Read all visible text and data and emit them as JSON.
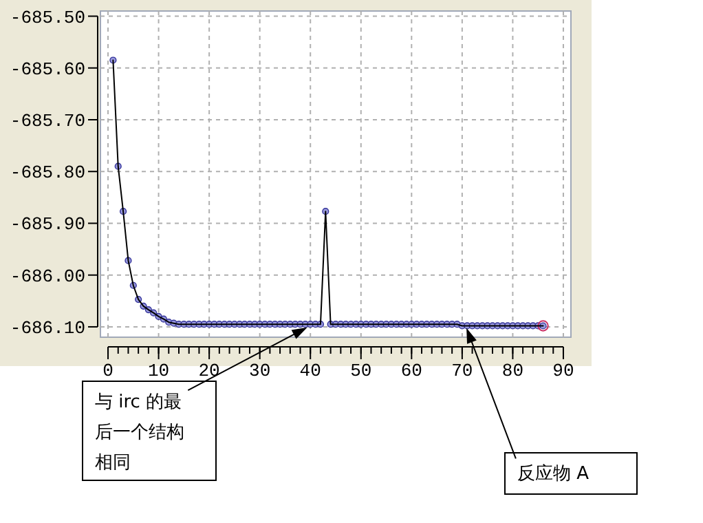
{
  "chart_data": {
    "type": "line",
    "x": [
      1,
      2,
      3,
      4,
      5,
      6,
      7,
      8,
      9,
      10,
      11,
      12,
      13,
      14,
      15,
      16,
      17,
      18,
      19,
      20,
      21,
      22,
      23,
      24,
      25,
      26,
      27,
      28,
      29,
      30,
      31,
      32,
      33,
      34,
      35,
      36,
      37,
      38,
      39,
      40,
      41,
      42,
      43,
      44,
      45,
      46,
      47,
      48,
      49,
      50,
      51,
      52,
      53,
      54,
      55,
      56,
      57,
      58,
      59,
      60,
      61,
      62,
      63,
      64,
      65,
      66,
      67,
      68,
      69,
      70,
      71,
      72,
      73,
      74,
      75,
      76,
      77,
      78,
      79,
      80,
      81,
      82,
      83,
      84,
      85,
      86
    ],
    "series": [
      {
        "color": "#9999dd",
        "values": [
          -685.585,
          -685.79,
          -685.877,
          -685.972,
          -686.02,
          -686.047,
          -686.06,
          -686.067,
          -686.073,
          -686.08,
          -686.085,
          -686.091,
          -686.093,
          -686.095,
          -686.095,
          -686.095,
          -686.095,
          -686.095,
          -686.095,
          -686.095,
          -686.095,
          -686.095,
          -686.095,
          -686.095,
          -686.095,
          -686.095,
          -686.095,
          -686.095,
          -686.095,
          -686.095,
          -686.095,
          -686.095,
          -686.095,
          -686.095,
          -686.095,
          -686.095,
          -686.095,
          -686.095,
          -686.095,
          -686.095,
          -686.095,
          -686.095,
          -685.877,
          -686.095,
          -686.095,
          -686.095,
          -686.095,
          -686.095,
          -686.095,
          -686.095,
          -686.095,
          -686.095,
          -686.095,
          -686.095,
          -686.095,
          -686.095,
          -686.095,
          -686.095,
          -686.095,
          -686.095,
          -686.095,
          -686.095,
          -686.095,
          -686.095,
          -686.095,
          -686.095,
          -686.095,
          -686.095,
          -686.095,
          -686.098,
          -686.098,
          -686.098,
          -686.098,
          -686.098,
          -686.098,
          -686.098,
          -686.098,
          -686.098,
          -686.098,
          -686.098,
          -686.098,
          -686.098,
          -686.098,
          -686.098,
          -686.098,
          -686.098
        ],
        "colors": [
          "#9999dd",
          "#9999dd",
          "#9999dd",
          "#9999dd",
          "#9999dd",
          "#9999dd",
          "#9999dd",
          "#9999dd",
          "#9999dd",
          "#9999dd",
          "#9999dd",
          "#9999dd",
          "#9999dd",
          "#9999dd",
          "#9999dd",
          "#9999dd",
          "#9999dd",
          "#9999dd",
          "#9999dd",
          "#9999dd",
          "#9999dd",
          "#9999dd",
          "#9999dd",
          "#9999dd",
          "#9999dd",
          "#9999dd",
          "#9999dd",
          "#9999dd",
          "#9999dd",
          "#9999dd",
          "#9999dd",
          "#9999dd",
          "#9999dd",
          "#9999dd",
          "#9999dd",
          "#9999dd",
          "#9999dd",
          "#9999dd",
          "#9999dd",
          "#9999dd",
          "#9999dd",
          "#9999dd",
          "#9999dd",
          "#9999dd",
          "#9999dd",
          "#9999dd",
          "#9999dd",
          "#9999dd",
          "#9999dd",
          "#9999dd",
          "#9999dd",
          "#9999dd",
          "#9999dd",
          "#9999dd",
          "#9999dd",
          "#9999dd",
          "#9999dd",
          "#9999dd",
          "#9999dd",
          "#9999dd",
          "#9999dd",
          "#9999dd",
          "#9999dd",
          "#9999dd",
          "#9999dd",
          "#9999dd",
          "#9999dd",
          "#9999dd",
          "#9999dd",
          "#9999dd",
          "#9999dd",
          "#9999dd",
          "#9999dd",
          "#9999dd",
          "#9999dd",
          "#9999dd",
          "#9999dd",
          "#9999dd",
          "#9999dd",
          "#9999dd",
          "#9999dd",
          "#9999dd",
          "#9999dd",
          "#9999dd",
          "#9999dd",
          "#cc3366"
        ]
      }
    ],
    "xlim": [
      -1.5,
      91.5
    ],
    "xticks": [
      0,
      10,
      20,
      30,
      40,
      50,
      60,
      70,
      80,
      90
    ],
    "ylim": [
      -686.12,
      -685.49
    ],
    "yticks": [
      {
        "value": -685.5,
        "label": "-685.50"
      },
      {
        "value": -685.6,
        "label": "-685.60"
      },
      {
        "value": -685.7,
        "label": "-685.70"
      },
      {
        "value": -685.8,
        "label": "-685.80"
      },
      {
        "value": -685.9,
        "label": "-685.90"
      },
      {
        "value": -686.0,
        "label": "-686.00"
      },
      {
        "value": -686.1,
        "label": "-686.10"
      }
    ],
    "grid": true,
    "marker": "circle",
    "line_style": "solid",
    "annotations": [
      {
        "text": "与 irc 的最后一个结构相同",
        "x": 39,
        "y": -686.095
      },
      {
        "text": "反应物 A",
        "x": 71,
        "y": -686.098
      }
    ]
  }
}
